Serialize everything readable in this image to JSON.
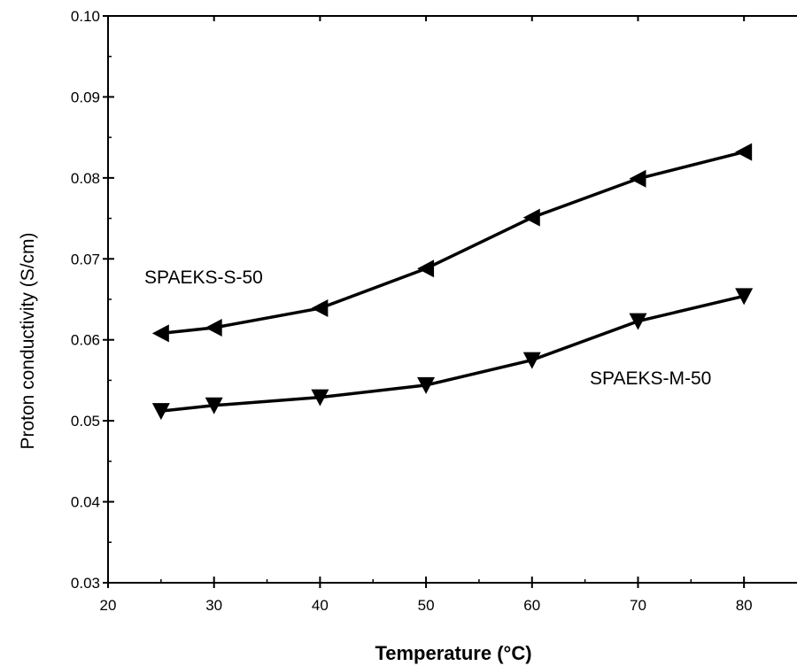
{
  "chart_data": {
    "type": "line",
    "title": "",
    "xlabel": "Temperature (°C)",
    "ylabel": "Proton conductivity (S/cm)",
    "xlim": [
      20,
      85
    ],
    "ylim": [
      0.03,
      0.1
    ],
    "xticks": [
      20,
      30,
      40,
      50,
      60,
      70,
      80
    ],
    "yticks": [
      "0.03",
      "0.04",
      "0.05",
      "0.06",
      "0.07",
      "0.08",
      "0.09",
      "0.10"
    ],
    "grid": false,
    "series": [
      {
        "name": "SPAEKS-S-50",
        "marker": "left-triangle",
        "x": [
          25,
          30,
          40,
          50,
          60,
          70,
          80
        ],
        "y": [
          0.0608,
          0.0615,
          0.0639,
          0.0688,
          0.0751,
          0.0799,
          0.0832
        ]
      },
      {
        "name": "SPAEKS-M-50",
        "marker": "down-triangle",
        "x": [
          25,
          30,
          40,
          50,
          60,
          70,
          80
        ],
        "y": [
          0.0512,
          0.0519,
          0.0529,
          0.0544,
          0.0575,
          0.0623,
          0.0654
        ]
      }
    ],
    "series_label_positions": [
      "upper-left",
      "lower-right"
    ]
  }
}
